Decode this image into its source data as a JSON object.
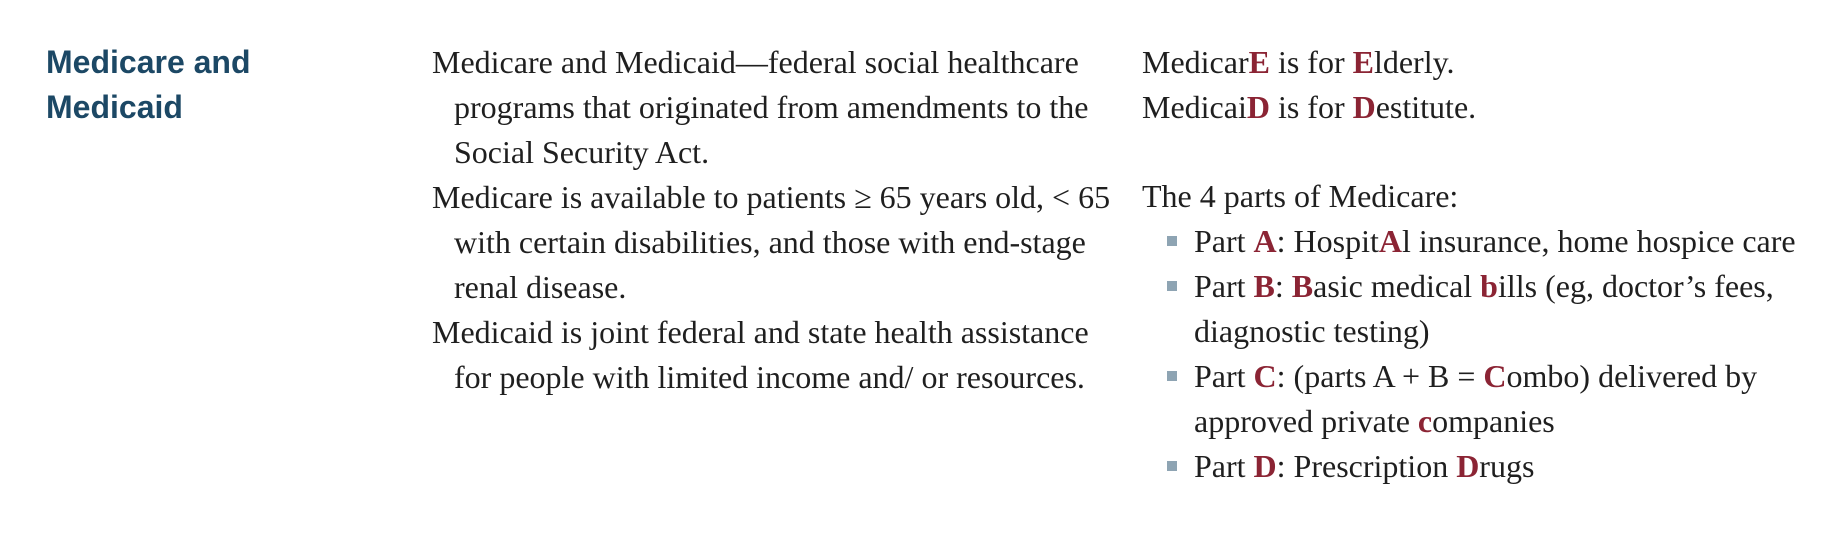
{
  "heading": {
    "line1": "Medicare and",
    "line2": "Medicaid"
  },
  "paragraphs": [
    "Medicare and Medicaid—federal social healthcare programs that originated from amendments to the Social Security Act.",
    "Medicare is available to patients ≥ 65 years old, < 65 with certain disabilities, and those with end-stage renal disease.",
    "Medicaid is joint federal and state health assistance for people with limited income and/ or resources."
  ],
  "mnemonics": {
    "medicare": {
      "a": "Medicar",
      "b": "E",
      "c": " is for ",
      "d": "E",
      "e": "lderly."
    },
    "medicaid": {
      "a": "Medicai",
      "b": "D",
      "c": " is for ",
      "d": "D",
      "e": "estitute."
    }
  },
  "parts_title": "The 4 parts of Medicare:",
  "parts": [
    {
      "a": "Part ",
      "b": "A",
      "c": ": Hospit",
      "d": "A",
      "e": "l insurance, home hospice care",
      "f": "",
      "g": ""
    },
    {
      "a": "Part ",
      "b": "B",
      "c": ": ",
      "d": "B",
      "e": "asic medical ",
      "f": "b",
      "g": "ills (eg, doctor’s fees, diagnostic testing)"
    },
    {
      "a": "Part ",
      "b": "C",
      "c": ": (parts A + B = ",
      "d": "C",
      "e": "ombo) delivered by approved private ",
      "f": "c",
      "g": "ompanies"
    },
    {
      "a": "Part ",
      "b": "D",
      "c": ": Prescription ",
      "d": "D",
      "e": "rugs",
      "f": "",
      "g": ""
    }
  ],
  "colors": {
    "heading": "#1c4865",
    "highlight": "#8b2434",
    "bullet": "#8ea4b3",
    "text": "#1f1f1f"
  }
}
